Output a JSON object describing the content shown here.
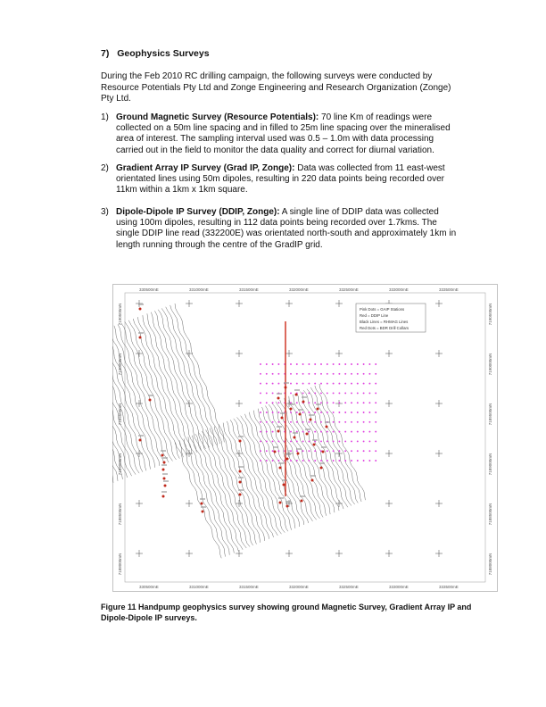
{
  "section": {
    "number": "7)",
    "title": "Geophysics Surveys"
  },
  "intro": "During the Feb 2010 RC drilling campaign, the following surveys were conducted by Resource Potentials Pty Ltd and Zonge Engineering and Research Organization (Zonge) Pty Ltd.",
  "items": [
    {
      "index": "1)",
      "lead": "Ground Magnetic Survey (Resource Potentials):",
      "text": " 70 line Km of readings were collected on a 50m line spacing and in filled to 25m line spacing over the mineralised area of interest. The sampling interval used was 0.5 – 1.0m with data processing carried out in the field to monitor the data quality and correct for diurnal variation."
    },
    {
      "index": "2)",
      "lead": "Gradient Array IP Survey (Grad IP, Zonge):",
      "text": " Data was collected from 11 east-west orientated lines using 50m dipoles, resulting in 220 data points being recorded over 11km within a 1km x 1km square."
    },
    {
      "index": "3)",
      "lead": "Dipole-Dipole IP Survey (DDIP, Zonge):",
      "text": " A single line of DDIP data was collected using 100m dipoles, resulting in 112 data points being recorded over 1.7kms. The single DDIP line read (332200E) was orientated north-south and approximately 1km in length running through the centre of the GradIP grid."
    }
  ],
  "figure": {
    "easting_labels": [
      "330500mE",
      "331000mE",
      "331500mE",
      "332000mE",
      "332500mE",
      "333000mE",
      "333500mE"
    ],
    "easting_labels_bottom": [
      "330500mE",
      "331000mE",
      "331500mE",
      "332000mE",
      "332500mE",
      "333000mE",
      "333500mE"
    ],
    "northing_labels": [
      "7190500mN",
      "7190000mN",
      "7189500mN",
      "7189000mN",
      "7188500mN",
      "7188000mN"
    ],
    "legend": [
      "Pink Dots = GAIP Stations",
      "Red = DDIP Line",
      "Black Lines = RHMAG Lines",
      "Red Dots = BDR Drill Collars"
    ],
    "colors": {
      "mag_lines": "#555555",
      "gaip_stations": "#e040e0",
      "ddip_line": "#cc2a1a",
      "drill_collars": "#c0281a"
    }
  },
  "caption": "Figure 11 Handpump geophysics survey showing ground Magnetic Survey, Gradient Array IP and Dipole-Dipole IP surveys."
}
